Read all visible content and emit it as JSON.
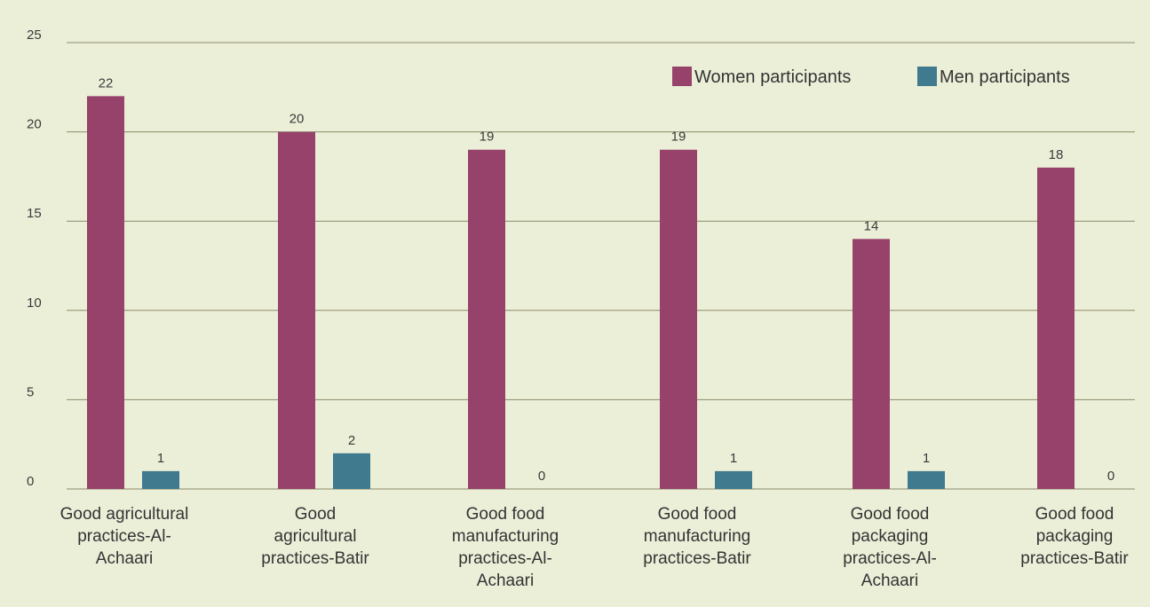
{
  "chart_data": {
    "type": "bar",
    "categories": [
      "Good agricultural practices-Al-Achaari",
      "Good agricultural practices-Batir",
      "Good food manufacturing practices-Al-Achaari",
      "Good food manufacturing practices-Batir",
      "Good food packaging practices-Al-Achaari",
      "Good food packaging practices-Batir"
    ],
    "category_lines": [
      [
        "Good agricultural",
        "practices-Al-",
        "Achaari"
      ],
      [
        "Good",
        "agricultural",
        "practices-Batir"
      ],
      [
        "Good food",
        "manufacturing",
        "practices-Al-",
        "Achaari"
      ],
      [
        "Good food",
        "manufacturing",
        "practices-Batir"
      ],
      [
        "Good food",
        "packaging",
        "practices-Al-",
        "Achaari"
      ],
      [
        "Good food",
        "packaging",
        "practices-Batir"
      ]
    ],
    "series": [
      {
        "name": "Women participants",
        "color": "#96426a",
        "values": [
          22,
          20,
          19,
          19,
          14,
          18
        ]
      },
      {
        "name": "Men participants",
        "color": "#3f7a8f",
        "values": [
          1,
          2,
          0,
          1,
          1,
          0
        ]
      }
    ],
    "ylim": [
      0,
      25
    ],
    "yticks": [
      0,
      5,
      10,
      15,
      20,
      25
    ],
    "grid": true,
    "legend_position": "top-right",
    "title": "",
    "xlabel": "",
    "ylabel": ""
  },
  "colors": {
    "background": "#ecefd8",
    "gridline": "#8a8a6a",
    "text": "#333333"
  }
}
